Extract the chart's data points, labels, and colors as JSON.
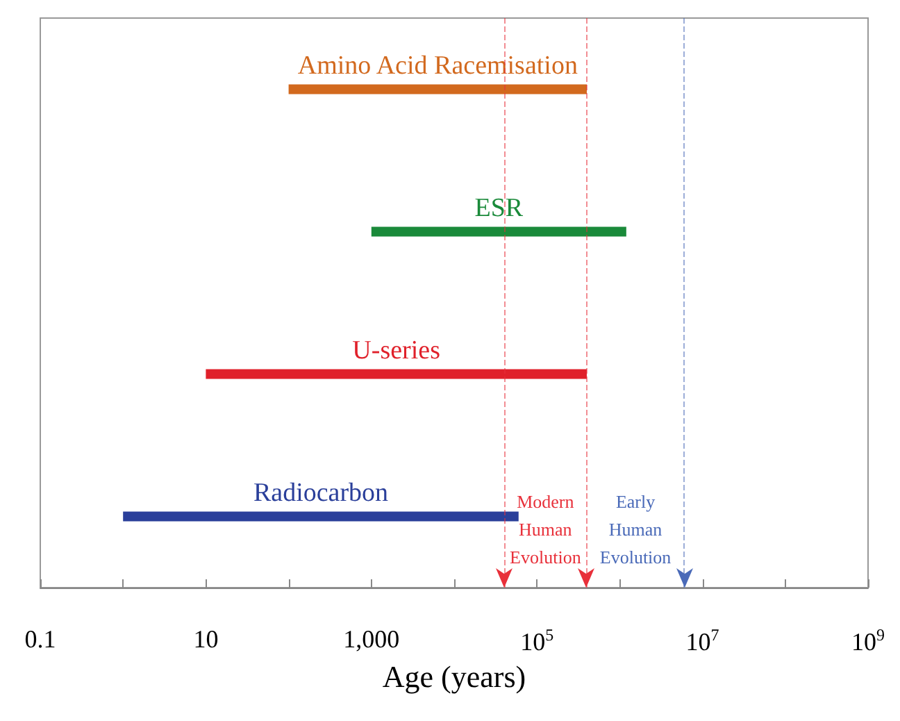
{
  "chart_data": {
    "type": "bar",
    "orientation": "horizontal",
    "xlabel": "Age (years)",
    "log": "x",
    "categories": [
      "Amino Acid Racemisation",
      "ESR",
      "U-series",
      "Radiocarbon"
    ],
    "base": [
      100,
      1000,
      10,
      1
    ],
    "values": [
      399900,
      1199000,
      399990,
      59999
    ],
    "colors": [
      "#d2691e",
      "#1a8a3a",
      "#e0202a",
      "#2a3f9a"
    ],
    "xlim": [
      0.1,
      1000000000
    ],
    "xticks": [
      0.1,
      {
        "value": 1,
        "label": null
      },
      10,
      {
        "value": 100,
        "label": null
      },
      {
        "value": 1000,
        "label": "1,000"
      },
      {
        "value": 10000,
        "label": null
      },
      {
        "value": 100000,
        "label": "10$^{5}$"
      },
      {
        "value": 1000000,
        "label": null
      },
      {
        "value": 10000000,
        "label": "10$^{7}$"
      },
      {
        "value": 100000000,
        "label": null
      },
      {
        "value": 1000000000,
        "label": "10$^{9}$"
      }
    ],
    "ref_lines": [
      {
        "axis": "x",
        "value": 40000,
        "color": "#e8303a",
        "line_style": "dashed"
      },
      {
        "axis": "x",
        "value": 400000,
        "color": "#e8303a",
        "line_style": "dashed"
      },
      {
        "axis": "x",
        "value": 6000000,
        "color": "#4a6ab8",
        "line_style": "dashed"
      }
    ],
    "annotations": [
      "Modern\nHuman\nEvolution",
      "Early\nHuman\nEvolution"
    ],
    "grid": false
  }
}
